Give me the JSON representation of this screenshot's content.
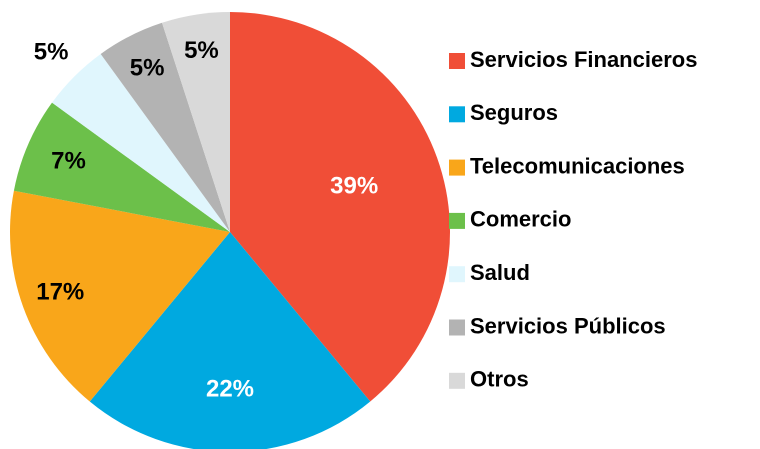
{
  "chart_data": {
    "type": "pie",
    "categories": [
      "Servicios Financieros",
      "Seguros",
      "Telecomunicaciones",
      "Comercio",
      "Salud",
      "Servicios Públicos",
      "Otros"
    ],
    "values": [
      39,
      22,
      17,
      7,
      5,
      5,
      5
    ],
    "value_labels": [
      "39%",
      "22%",
      "17%",
      "7%",
      "5%",
      "5%",
      "5%"
    ],
    "colors": [
      "#f04e37",
      "#00a9e0",
      "#f9a61a",
      "#6cc04a",
      "#e0f6fd",
      "#b3b3b3",
      "#d9d9d9"
    ],
    "legend": "right"
  }
}
